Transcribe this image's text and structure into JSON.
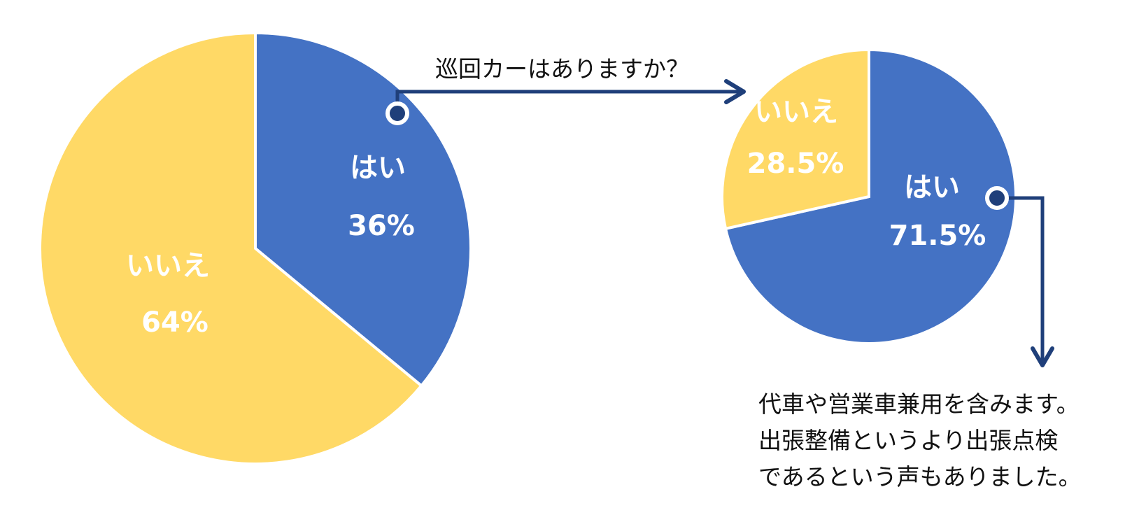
{
  "chart_data": [
    {
      "type": "pie",
      "slices": [
        {
          "label": "はい",
          "value": 36,
          "value_label": "36%",
          "color": "#4472C4"
        },
        {
          "label": "いいえ",
          "value": 64,
          "value_label": "64%",
          "color": "#FFD966"
        }
      ]
    },
    {
      "type": "pie",
      "slices": [
        {
          "label": "はい",
          "value": 71.5,
          "value_label": "71.5%",
          "color": "#4472C4"
        },
        {
          "label": "いいえ",
          "value": 28.5,
          "value_label": "28.5%",
          "color": "#FFD966"
        }
      ]
    }
  ],
  "annotations": {
    "question": "巡回カーはありますか？",
    "note_lines": [
      "代車や営業車兼用を含みます。",
      "出張整備というより出張点検",
      "であるという声もありました。"
    ]
  },
  "colors": {
    "arrow": "#1F3F7A",
    "label_text": "#ffffff",
    "annotation_text": "#111111"
  }
}
